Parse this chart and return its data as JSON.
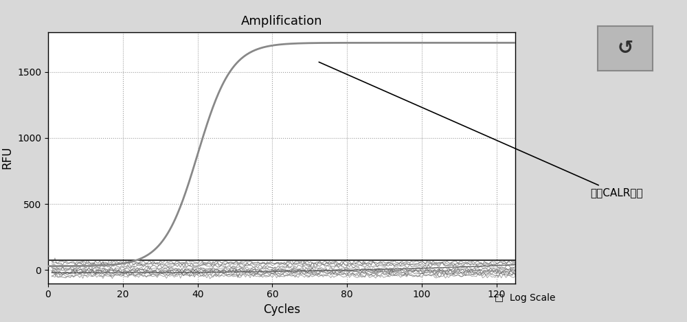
{
  "title": "Amplification",
  "xlabel": "Cycles",
  "ylabel": "RFU",
  "xlim": [
    0,
    125
  ],
  "ylim": [
    -100,
    1800
  ],
  "yticks": [
    0,
    500,
    1000,
    1500
  ],
  "xticks": [
    0,
    20,
    40,
    60,
    80,
    100,
    120
  ],
  "background_color": "#d8d8d8",
  "plot_bg_color": "#ffffff",
  "sigmoid_color": "#888888",
  "flat_line_color": "#333333",
  "annotation_text": "内参CALR基因",
  "sigmoid_midpoint": 40,
  "sigmoid_max": 1720,
  "sigmoid_min": 30,
  "sigmoid_k": 0.22,
  "flat_line_y": 75,
  "noise_lines": [
    {
      "base": 60,
      "amplitude": 18,
      "color": "#666666"
    },
    {
      "base": 45,
      "amplitude": 20,
      "color": "#777777"
    },
    {
      "base": 30,
      "amplitude": 22,
      "color": "#666666"
    },
    {
      "base": 15,
      "amplitude": 18,
      "color": "#888888"
    },
    {
      "base": 5,
      "amplitude": 20,
      "color": "#777777"
    },
    {
      "base": -5,
      "amplitude": 18,
      "color": "#666666"
    },
    {
      "base": -15,
      "amplitude": 20,
      "color": "#888888"
    },
    {
      "base": -25,
      "amplitude": 22,
      "color": "#777777"
    },
    {
      "base": -35,
      "amplitude": 18,
      "color": "#666666"
    },
    {
      "base": -45,
      "amplitude": 20,
      "color": "#888888"
    },
    {
      "base": 50,
      "amplitude": 16,
      "color": "#777777"
    },
    {
      "base": -10,
      "amplitude": 22,
      "color": "#666666"
    }
  ]
}
